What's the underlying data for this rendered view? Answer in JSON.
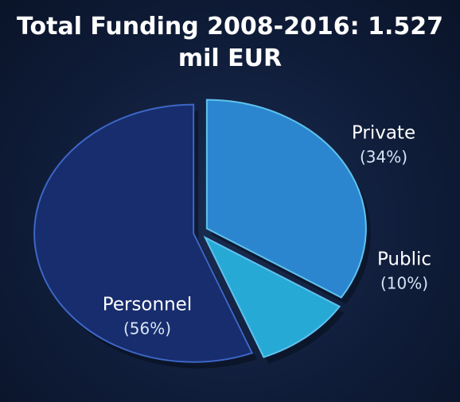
{
  "chart_data": {
    "type": "pie",
    "title": "Total Funding 2008-2016: 1.527 mil EUR",
    "categories": [
      "Private",
      "Public",
      "Personnel"
    ],
    "values": [
      34,
      10,
      56
    ],
    "value_labels": [
      "(34%)",
      "(10%)",
      "(56%)"
    ],
    "colors": [
      "#2b86cf",
      "#27a9d6",
      "#182d6e"
    ]
  }
}
